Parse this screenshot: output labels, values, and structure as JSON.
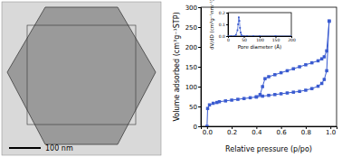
{
  "image": {
    "scale_bar": "100 nm"
  },
  "chart_data": [
    {
      "type": "line",
      "x_label": "Relative pressure (p/po)",
      "y_label": "Volume adsorbed (cm³g⁻¹STP)",
      "xlim": [
        -0.05,
        1.05
      ],
      "xticks": [
        {
          "value": 0,
          "label": "0.0"
        },
        {
          "value": 0.2,
          "label": "0.2"
        },
        {
          "value": 0.4,
          "label": "0.4"
        },
        {
          "value": 0.6,
          "label": "0.6"
        },
        {
          "value": 0.8,
          "label": "0.8"
        },
        {
          "value": 1,
          "label": "1.0"
        }
      ],
      "ylim": [
        0,
        300
      ],
      "yticks": [
        0,
        50,
        100,
        150,
        200,
        250,
        300
      ],
      "color": "#3a5bd0",
      "marker": "square",
      "line_style": "solid",
      "series": [
        {
          "color": "#3a5bd0",
          "x": [
            0,
            0.005,
            0.02,
            0.05,
            0.08,
            0.1,
            0.15,
            0.2,
            0.25,
            0.3,
            0.35,
            0.4,
            0.45,
            0.5,
            0.55,
            0.6,
            0.65,
            0.7,
            0.75,
            0.8,
            0.85,
            0.9,
            0.93,
            0.95,
            0.97,
            0.99
          ],
          "values": [
            0,
            45,
            54,
            58,
            60,
            62,
            64,
            66,
            68,
            70,
            72,
            74,
            76,
            78,
            80,
            82,
            84,
            86,
            88,
            91,
            95,
            101,
            108,
            118,
            140,
            265
          ]
        },
        {
          "color": "#3a5bd0",
          "x": [
            0.99,
            0.97,
            0.95,
            0.93,
            0.9,
            0.85,
            0.8,
            0.75,
            0.7,
            0.65,
            0.6,
            0.55,
            0.5,
            0.47,
            0.45,
            0.43,
            0.4
          ],
          "values": [
            265,
            190,
            175,
            170,
            165,
            160,
            155,
            150,
            145,
            140,
            135,
            130,
            125,
            120,
            100,
            80,
            74
          ]
        }
      ]
    },
    {
      "type": "line",
      "x_label": "Pore diameter (Å)",
      "y_label": "dV/dD (cm³g⁻¹nm⁻¹)",
      "xlim": [
        0,
        200
      ],
      "xticks": [
        0,
        50,
        100,
        150,
        200
      ],
      "ylim": [
        0,
        0.2
      ],
      "yticks": [
        {
          "value": 0,
          "label": "0.0"
        },
        {
          "value": 0.1,
          "label": "0.1"
        },
        {
          "value": 0.2,
          "label": "0.2"
        }
      ],
      "color": "#3a5bd0",
      "marker": "square",
      "line_style": "solid",
      "series": [
        {
          "color": "#3a5bd0",
          "x": [
            0,
            10,
            20,
            25,
            30,
            32,
            34,
            36,
            38,
            40,
            42,
            45,
            50,
            60,
            80,
            100,
            150,
            200
          ],
          "values": [
            0,
            0,
            0,
            0.01,
            0.05,
            0.1,
            0.16,
            0.13,
            0.07,
            0.03,
            0.01,
            0,
            0,
            0,
            0,
            0,
            0,
            0
          ]
        }
      ]
    }
  ]
}
